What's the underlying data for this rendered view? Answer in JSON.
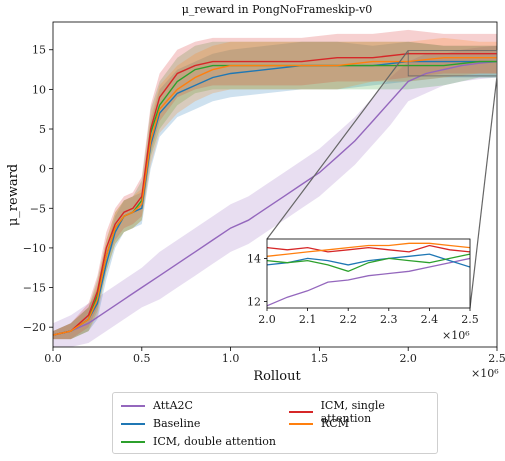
{
  "chart_data": {
    "type": "line",
    "title": "μ_reward in PongNoFrameskip-v0",
    "xlabel": "Rollout",
    "ylabel": "μ_reward",
    "x_multiplier": "×10⁶",
    "xlim": [
      0.0,
      2.5
    ],
    "ylim": [
      -22.5,
      18.5
    ],
    "x_ticks": [
      "0.0",
      "0.5",
      "1.0",
      "1.5",
      "2.0",
      "2.5"
    ],
    "y_ticks": [
      "−20",
      "−15",
      "−10",
      "−5",
      "0",
      "5",
      "10",
      "15"
    ],
    "x_tick_values": [
      0.0,
      0.5,
      1.0,
      1.5,
      2.0,
      2.5
    ],
    "y_tick_values": [
      -20,
      -15,
      -10,
      -5,
      0,
      5,
      10,
      15
    ],
    "legend_position": "below",
    "series": [
      {
        "name": "AttA2C",
        "color": "#9467bd",
        "x": [
          0.0,
          0.1,
          0.2,
          0.3,
          0.4,
          0.5,
          0.6,
          0.7,
          0.8,
          0.9,
          1.0,
          1.1,
          1.2,
          1.3,
          1.4,
          1.5,
          1.6,
          1.7,
          1.8,
          1.9,
          2.0,
          2.1,
          2.2,
          2.3,
          2.4,
          2.5
        ],
        "y": [
          -21,
          -20.5,
          -19.5,
          -18,
          -16.5,
          -15,
          -13.5,
          -12,
          -10.5,
          -9,
          -7.5,
          -6.5,
          -5,
          -3.5,
          -2,
          -0.5,
          1.5,
          3.5,
          6,
          8.5,
          11,
          12,
          12.5,
          13,
          13.3,
          13.5
        ],
        "band": [
          1.5,
          2,
          2.5,
          2.5,
          2.5,
          2.5,
          3,
          3,
          3,
          3,
          3,
          3,
          3,
          3,
          3,
          3,
          3,
          3,
          3,
          3,
          2.5,
          2.5,
          2,
          2,
          2,
          2
        ]
      },
      {
        "name": "Baseline",
        "color": "#1f77b4",
        "x": [
          0.0,
          0.1,
          0.2,
          0.25,
          0.3,
          0.35,
          0.4,
          0.45,
          0.5,
          0.55,
          0.6,
          0.7,
          0.8,
          0.9,
          1.0,
          1.2,
          1.4,
          1.6,
          1.8,
          2.0,
          2.2,
          2.4,
          2.5
        ],
        "y": [
          -21,
          -20.5,
          -19,
          -17,
          -12,
          -8,
          -6,
          -5.5,
          -5,
          3,
          7,
          9.5,
          10.5,
          11.5,
          12,
          12.5,
          13,
          13,
          13,
          13.5,
          13.5,
          13.5,
          13.5
        ],
        "band": [
          0.5,
          1,
          1.5,
          2,
          2,
          2,
          2,
          2,
          2,
          3,
          3,
          3,
          3,
          3,
          3,
          3,
          3,
          3,
          2.5,
          2.5,
          2,
          2,
          2
        ]
      },
      {
        "name": "ICM, double attention",
        "color": "#2ca02c",
        "x": [
          0.0,
          0.1,
          0.2,
          0.25,
          0.3,
          0.35,
          0.4,
          0.45,
          0.5,
          0.55,
          0.6,
          0.7,
          0.8,
          0.9,
          1.0,
          1.2,
          1.4,
          1.6,
          1.8,
          2.0,
          2.2,
          2.4,
          2.5
        ],
        "y": [
          -21,
          -20.5,
          -19,
          -16,
          -11,
          -7.5,
          -6,
          -5.5,
          -4,
          4.5,
          8,
          11,
          12.5,
          13,
          13,
          13,
          13,
          13,
          13,
          13,
          13,
          13.5,
          13.5
        ],
        "band": [
          0.5,
          1,
          1.5,
          2,
          2,
          2,
          2,
          2,
          2.5,
          3,
          3,
          3,
          3,
          3,
          3,
          3,
          3,
          3,
          3,
          3,
          2.5,
          2,
          2
        ]
      },
      {
        "name": "ICM, single attention",
        "color": "#d62728",
        "x": [
          0.0,
          0.1,
          0.2,
          0.25,
          0.3,
          0.35,
          0.4,
          0.45,
          0.5,
          0.55,
          0.6,
          0.7,
          0.8,
          0.9,
          1.0,
          1.2,
          1.4,
          1.6,
          1.8,
          2.0,
          2.2,
          2.4,
          2.5
        ],
        "y": [
          -21,
          -20.5,
          -18.5,
          -15.5,
          -10,
          -7,
          -5.5,
          -5,
          -3.5,
          5,
          9,
          12,
          13,
          13.5,
          13.5,
          13.5,
          13.5,
          14,
          14,
          14.5,
          14.5,
          14.5,
          14.5
        ],
        "band": [
          0.5,
          1,
          1.5,
          2,
          2,
          2,
          2,
          2,
          2.5,
          3,
          3,
          3,
          3,
          3,
          3,
          3,
          3,
          3,
          3,
          3,
          2.5,
          2.5,
          2.5
        ]
      },
      {
        "name": "RCM",
        "color": "#ff7f0e",
        "x": [
          0.0,
          0.1,
          0.2,
          0.25,
          0.3,
          0.35,
          0.4,
          0.45,
          0.5,
          0.55,
          0.6,
          0.7,
          0.8,
          0.9,
          1.0,
          1.2,
          1.4,
          1.6,
          1.8,
          2.0,
          2.2,
          2.4,
          2.5
        ],
        "y": [
          -21,
          -20.5,
          -19,
          -16.5,
          -11,
          -7.5,
          -6,
          -5.5,
          -4.5,
          3.5,
          7.5,
          10,
          11.5,
          12.5,
          13,
          13,
          13,
          13,
          13.5,
          13.5,
          14,
          14,
          14
        ],
        "band": [
          0.5,
          1,
          1.5,
          2,
          2,
          2,
          2,
          2,
          2,
          3,
          3,
          3,
          3,
          3,
          3,
          3,
          3,
          3,
          2.5,
          2.5,
          2.5,
          2,
          2
        ]
      }
    ],
    "inset": {
      "xlim": [
        2.0,
        2.5
      ],
      "ylim": [
        11.7,
        14.9
      ],
      "x_ticks": [
        "2.0",
        "2.1",
        "2.2",
        "2.3",
        "2.4",
        "2.5"
      ],
      "y_ticks": [
        "12",
        "14"
      ],
      "x_tick_values": [
        2.0,
        2.1,
        2.2,
        2.3,
        2.4,
        2.5
      ],
      "y_tick_values": [
        12,
        14
      ],
      "x_multiplier": "×10⁶",
      "series": [
        {
          "name": "AttA2C",
          "color": "#9467bd",
          "x": [
            2.0,
            2.05,
            2.1,
            2.15,
            2.2,
            2.25,
            2.3,
            2.35,
            2.4,
            2.45,
            2.5
          ],
          "y": [
            11.8,
            12.2,
            12.5,
            12.9,
            13.0,
            13.2,
            13.3,
            13.4,
            13.6,
            13.8,
            14.0
          ]
        },
        {
          "name": "Baseline",
          "color": "#1f77b4",
          "x": [
            2.0,
            2.05,
            2.1,
            2.15,
            2.2,
            2.25,
            2.3,
            2.35,
            2.4,
            2.45,
            2.5
          ],
          "y": [
            13.7,
            13.8,
            14.0,
            13.9,
            13.7,
            13.9,
            14.0,
            14.1,
            14.2,
            13.9,
            13.6
          ]
        },
        {
          "name": "ICM, double attention",
          "color": "#2ca02c",
          "x": [
            2.0,
            2.05,
            2.1,
            2.15,
            2.2,
            2.25,
            2.3,
            2.35,
            2.4,
            2.45,
            2.5
          ],
          "y": [
            13.9,
            13.8,
            13.9,
            13.7,
            13.4,
            13.8,
            14.0,
            13.9,
            13.8,
            14.0,
            14.2
          ]
        },
        {
          "name": "ICM, single attention",
          "color": "#d62728",
          "x": [
            2.0,
            2.05,
            2.1,
            2.15,
            2.2,
            2.25,
            2.3,
            2.35,
            2.4,
            2.45,
            2.5
          ],
          "y": [
            14.5,
            14.4,
            14.5,
            14.3,
            14.4,
            14.5,
            14.4,
            14.3,
            14.6,
            14.4,
            14.3
          ]
        },
        {
          "name": "RCM",
          "color": "#ff7f0e",
          "x": [
            2.0,
            2.05,
            2.1,
            2.15,
            2.2,
            2.25,
            2.3,
            2.35,
            2.4,
            2.45,
            2.5
          ],
          "y": [
            14.1,
            14.2,
            14.3,
            14.4,
            14.5,
            14.6,
            14.6,
            14.7,
            14.7,
            14.6,
            14.5
          ]
        }
      ]
    }
  }
}
